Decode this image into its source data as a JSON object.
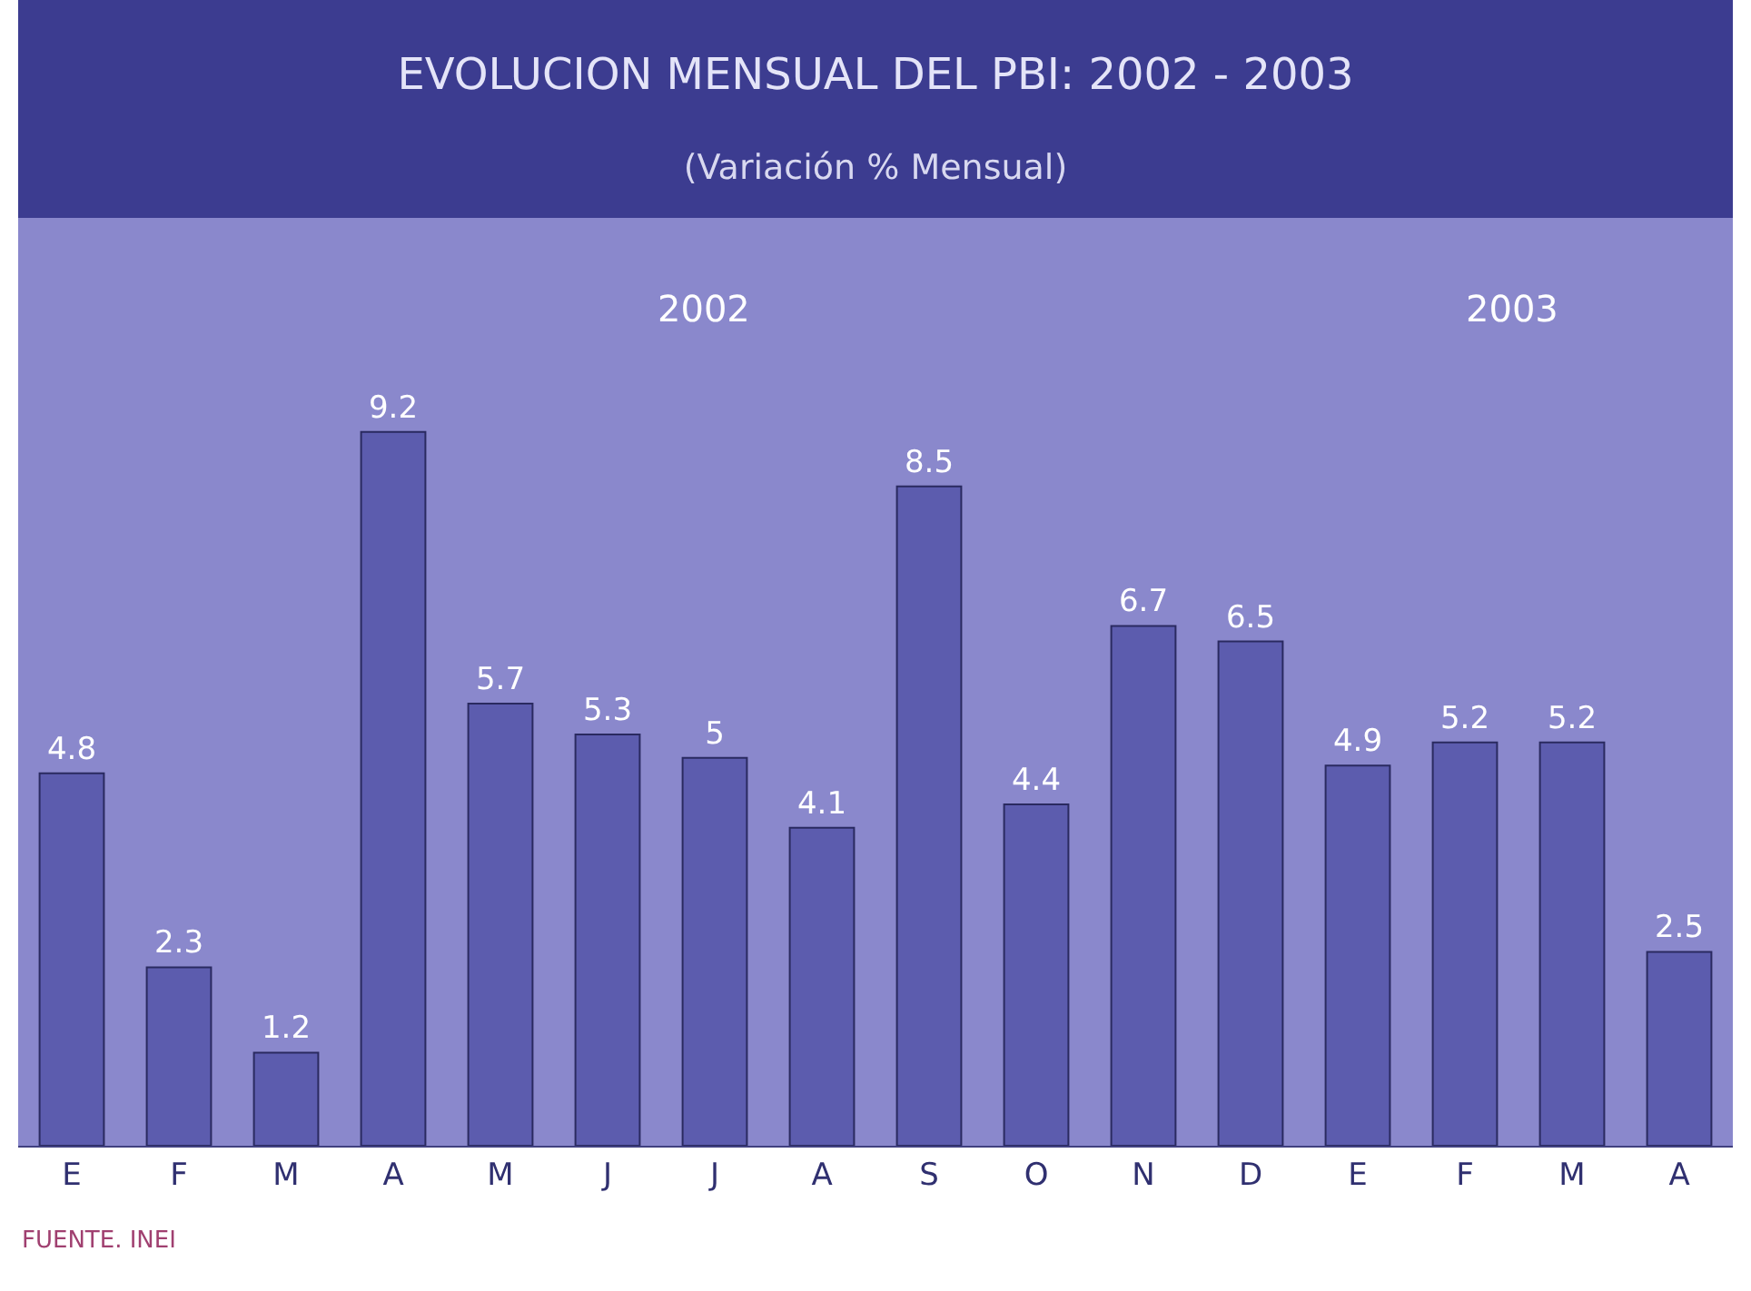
{
  "chart_data": {
    "type": "bar",
    "title": "EVOLUCION MENSUAL DEL PBI: 2002 - 2003",
    "subtitle": "(Variación % Mensual)",
    "categories": [
      "E",
      "F",
      "M",
      "A",
      "M",
      "J",
      "J",
      "A",
      "S",
      "O",
      "N",
      "D",
      "E",
      "F",
      "M",
      "A"
    ],
    "values": [
      4.8,
      2.3,
      1.2,
      9.2,
      5.7,
      5.3,
      5,
      4.1,
      8.5,
      4.4,
      6.7,
      6.5,
      4.9,
      5.2,
      5.2,
      2.5
    ],
    "color": "#5c5cae",
    "data_labels": true,
    "annotations": [
      "2002",
      "2003",
      "FUENTE. INEI"
    ]
  }
}
